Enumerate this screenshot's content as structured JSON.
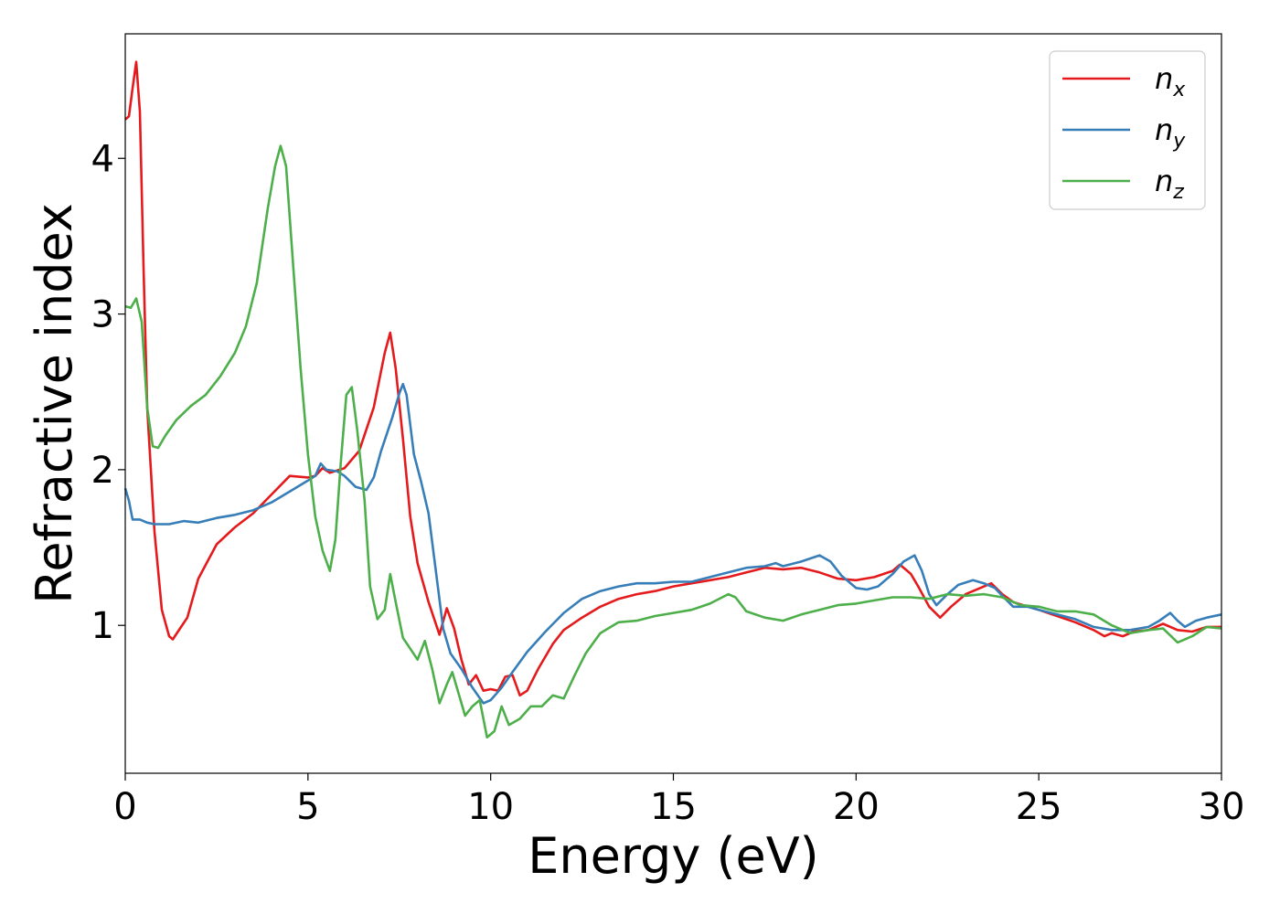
{
  "chart_data": {
    "type": "line",
    "xlabel": "Energy (eV)",
    "ylabel": "Refractive index",
    "xlim": [
      0,
      30
    ],
    "ylim": [
      0.05,
      4.8
    ],
    "xticks": [
      0,
      5,
      10,
      15,
      20,
      25,
      30
    ],
    "xtick_labels": [
      "0",
      "5",
      "10",
      "15",
      "20",
      "25",
      "30"
    ],
    "yticks": [
      1,
      2,
      3,
      4
    ],
    "ytick_labels": [
      "1",
      "2",
      "3",
      "4"
    ],
    "grid": false,
    "legend_position": "top-right",
    "series": [
      {
        "name": "n",
        "subscript": "x",
        "color": "#e41a1c",
        "points": [
          [
            0,
            4.25
          ],
          [
            0.1,
            4.27
          ],
          [
            0.2,
            4.45
          ],
          [
            0.3,
            4.62
          ],
          [
            0.4,
            4.3
          ],
          [
            0.5,
            3.3
          ],
          [
            0.6,
            2.4
          ],
          [
            0.8,
            1.6
          ],
          [
            1.0,
            1.1
          ],
          [
            1.2,
            0.93
          ],
          [
            1.3,
            0.91
          ],
          [
            1.5,
            0.98
          ],
          [
            1.7,
            1.05
          ],
          [
            2.0,
            1.3
          ],
          [
            2.5,
            1.52
          ],
          [
            3.0,
            1.63
          ],
          [
            3.5,
            1.72
          ],
          [
            4.0,
            1.84
          ],
          [
            4.5,
            1.96
          ],
          [
            5.0,
            1.95
          ],
          [
            5.2,
            1.96
          ],
          [
            5.4,
            2.01
          ],
          [
            5.6,
            1.98
          ],
          [
            6.0,
            2.01
          ],
          [
            6.4,
            2.12
          ],
          [
            6.8,
            2.4
          ],
          [
            7.1,
            2.75
          ],
          [
            7.25,
            2.88
          ],
          [
            7.4,
            2.65
          ],
          [
            7.6,
            2.2
          ],
          [
            7.8,
            1.7
          ],
          [
            8.0,
            1.4
          ],
          [
            8.3,
            1.15
          ],
          [
            8.6,
            0.94
          ],
          [
            8.8,
            1.11
          ],
          [
            9.0,
            0.98
          ],
          [
            9.2,
            0.78
          ],
          [
            9.4,
            0.62
          ],
          [
            9.6,
            0.68
          ],
          [
            9.8,
            0.58
          ],
          [
            10.0,
            0.59
          ],
          [
            10.2,
            0.58
          ],
          [
            10.4,
            0.67
          ],
          [
            10.6,
            0.68
          ],
          [
            10.8,
            0.55
          ],
          [
            11.0,
            0.58
          ],
          [
            11.3,
            0.72
          ],
          [
            11.7,
            0.88
          ],
          [
            12.0,
            0.97
          ],
          [
            12.5,
            1.05
          ],
          [
            13.0,
            1.12
          ],
          [
            13.5,
            1.17
          ],
          [
            14.0,
            1.2
          ],
          [
            14.5,
            1.22
          ],
          [
            15.0,
            1.25
          ],
          [
            15.5,
            1.27
          ],
          [
            16.0,
            1.29
          ],
          [
            16.5,
            1.31
          ],
          [
            17.0,
            1.34
          ],
          [
            17.5,
            1.37
          ],
          [
            18.0,
            1.36
          ],
          [
            18.5,
            1.37
          ],
          [
            19.0,
            1.34
          ],
          [
            19.5,
            1.3
          ],
          [
            20.0,
            1.29
          ],
          [
            20.5,
            1.31
          ],
          [
            21.0,
            1.35
          ],
          [
            21.2,
            1.39
          ],
          [
            21.5,
            1.33
          ],
          [
            21.7,
            1.25
          ],
          [
            22.0,
            1.12
          ],
          [
            22.3,
            1.05
          ],
          [
            22.6,
            1.12
          ],
          [
            23.0,
            1.2
          ],
          [
            23.4,
            1.24
          ],
          [
            23.7,
            1.27
          ],
          [
            24.0,
            1.2
          ],
          [
            24.3,
            1.15
          ],
          [
            24.7,
            1.12
          ],
          [
            25.0,
            1.1
          ],
          [
            25.5,
            1.06
          ],
          [
            26.0,
            1.02
          ],
          [
            26.5,
            0.97
          ],
          [
            26.8,
            0.93
          ],
          [
            27.0,
            0.95
          ],
          [
            27.3,
            0.93
          ],
          [
            27.6,
            0.96
          ],
          [
            28.0,
            0.97
          ],
          [
            28.4,
            1.01
          ],
          [
            28.8,
            0.97
          ],
          [
            29.2,
            0.96
          ],
          [
            29.6,
            0.99
          ],
          [
            30.0,
            0.99
          ]
        ]
      },
      {
        "name": "n",
        "subscript": "y",
        "color": "#377eb8",
        "points": [
          [
            0,
            1.88
          ],
          [
            0.1,
            1.8
          ],
          [
            0.2,
            1.68
          ],
          [
            0.4,
            1.68
          ],
          [
            0.6,
            1.66
          ],
          [
            0.8,
            1.65
          ],
          [
            1.2,
            1.65
          ],
          [
            1.6,
            1.67
          ],
          [
            2.0,
            1.66
          ],
          [
            2.5,
            1.69
          ],
          [
            3.0,
            1.71
          ],
          [
            3.5,
            1.74
          ],
          [
            4.0,
            1.79
          ],
          [
            4.5,
            1.86
          ],
          [
            5.0,
            1.93
          ],
          [
            5.2,
            1.96
          ],
          [
            5.35,
            2.04
          ],
          [
            5.5,
            2.0
          ],
          [
            5.8,
            1.99
          ],
          [
            6.0,
            1.96
          ],
          [
            6.3,
            1.89
          ],
          [
            6.6,
            1.87
          ],
          [
            6.8,
            1.95
          ],
          [
            7.0,
            2.12
          ],
          [
            7.3,
            2.33
          ],
          [
            7.5,
            2.49
          ],
          [
            7.6,
            2.55
          ],
          [
            7.7,
            2.48
          ],
          [
            7.9,
            2.1
          ],
          [
            8.1,
            1.92
          ],
          [
            8.3,
            1.72
          ],
          [
            8.5,
            1.35
          ],
          [
            8.7,
            0.98
          ],
          [
            8.9,
            0.82
          ],
          [
            9.2,
            0.72
          ],
          [
            9.5,
            0.6
          ],
          [
            9.8,
            0.5
          ],
          [
            10.0,
            0.52
          ],
          [
            10.3,
            0.6
          ],
          [
            10.6,
            0.7
          ],
          [
            11.0,
            0.83
          ],
          [
            11.5,
            0.96
          ],
          [
            12.0,
            1.08
          ],
          [
            12.5,
            1.17
          ],
          [
            13.0,
            1.22
          ],
          [
            13.5,
            1.25
          ],
          [
            14.0,
            1.27
          ],
          [
            14.5,
            1.27
          ],
          [
            15.0,
            1.28
          ],
          [
            15.5,
            1.28
          ],
          [
            16.0,
            1.31
          ],
          [
            16.5,
            1.34
          ],
          [
            17.0,
            1.37
          ],
          [
            17.5,
            1.38
          ],
          [
            17.8,
            1.4
          ],
          [
            18.0,
            1.38
          ],
          [
            18.5,
            1.41
          ],
          [
            19.0,
            1.45
          ],
          [
            19.3,
            1.41
          ],
          [
            19.6,
            1.32
          ],
          [
            20.0,
            1.24
          ],
          [
            20.3,
            1.23
          ],
          [
            20.6,
            1.25
          ],
          [
            21.0,
            1.33
          ],
          [
            21.3,
            1.41
          ],
          [
            21.6,
            1.45
          ],
          [
            21.8,
            1.35
          ],
          [
            22.0,
            1.2
          ],
          [
            22.2,
            1.13
          ],
          [
            22.5,
            1.2
          ],
          [
            22.8,
            1.26
          ],
          [
            23.2,
            1.29
          ],
          [
            23.5,
            1.27
          ],
          [
            23.8,
            1.24
          ],
          [
            24.0,
            1.19
          ],
          [
            24.3,
            1.12
          ],
          [
            24.7,
            1.12
          ],
          [
            25.0,
            1.1
          ],
          [
            25.5,
            1.07
          ],
          [
            26.0,
            1.04
          ],
          [
            26.5,
            0.99
          ],
          [
            27.0,
            0.97
          ],
          [
            27.5,
            0.97
          ],
          [
            28.0,
            0.99
          ],
          [
            28.3,
            1.03
          ],
          [
            28.6,
            1.08
          ],
          [
            28.8,
            1.03
          ],
          [
            29.0,
            0.99
          ],
          [
            29.3,
            1.03
          ],
          [
            29.6,
            1.05
          ],
          [
            30.0,
            1.07
          ]
        ]
      },
      {
        "name": "n",
        "subscript": "z",
        "color": "#4daf4a",
        "points": [
          [
            0,
            3.05
          ],
          [
            0.15,
            3.04
          ],
          [
            0.3,
            3.1
          ],
          [
            0.45,
            2.95
          ],
          [
            0.6,
            2.4
          ],
          [
            0.75,
            2.15
          ],
          [
            0.9,
            2.14
          ],
          [
            1.1,
            2.22
          ],
          [
            1.4,
            2.32
          ],
          [
            1.8,
            2.41
          ],
          [
            2.2,
            2.48
          ],
          [
            2.6,
            2.6
          ],
          [
            3.0,
            2.75
          ],
          [
            3.3,
            2.92
          ],
          [
            3.6,
            3.2
          ],
          [
            3.9,
            3.68
          ],
          [
            4.1,
            3.95
          ],
          [
            4.25,
            4.08
          ],
          [
            4.4,
            3.95
          ],
          [
            4.6,
            3.3
          ],
          [
            4.8,
            2.65
          ],
          [
            5.0,
            2.1
          ],
          [
            5.2,
            1.7
          ],
          [
            5.4,
            1.48
          ],
          [
            5.6,
            1.35
          ],
          [
            5.75,
            1.55
          ],
          [
            5.9,
            2.05
          ],
          [
            6.05,
            2.48
          ],
          [
            6.2,
            2.53
          ],
          [
            6.35,
            2.25
          ],
          [
            6.55,
            1.8
          ],
          [
            6.7,
            1.25
          ],
          [
            6.9,
            1.04
          ],
          [
            7.1,
            1.1
          ],
          [
            7.25,
            1.33
          ],
          [
            7.4,
            1.15
          ],
          [
            7.6,
            0.92
          ],
          [
            7.8,
            0.85
          ],
          [
            8.0,
            0.78
          ],
          [
            8.2,
            0.9
          ],
          [
            8.4,
            0.72
          ],
          [
            8.6,
            0.5
          ],
          [
            8.8,
            0.62
          ],
          [
            8.95,
            0.7
          ],
          [
            9.1,
            0.58
          ],
          [
            9.3,
            0.42
          ],
          [
            9.5,
            0.48
          ],
          [
            9.7,
            0.52
          ],
          [
            9.9,
            0.28
          ],
          [
            10.1,
            0.32
          ],
          [
            10.3,
            0.48
          ],
          [
            10.5,
            0.36
          ],
          [
            10.8,
            0.4
          ],
          [
            11.1,
            0.48
          ],
          [
            11.4,
            0.48
          ],
          [
            11.7,
            0.55
          ],
          [
            12.0,
            0.53
          ],
          [
            12.3,
            0.68
          ],
          [
            12.6,
            0.82
          ],
          [
            13.0,
            0.95
          ],
          [
            13.5,
            1.02
          ],
          [
            14.0,
            1.03
          ],
          [
            14.5,
            1.06
          ],
          [
            15.0,
            1.08
          ],
          [
            15.5,
            1.1
          ],
          [
            16.0,
            1.14
          ],
          [
            16.5,
            1.2
          ],
          [
            16.7,
            1.18
          ],
          [
            17.0,
            1.09
          ],
          [
            17.5,
            1.05
          ],
          [
            18.0,
            1.03
          ],
          [
            18.5,
            1.07
          ],
          [
            19.0,
            1.1
          ],
          [
            19.5,
            1.13
          ],
          [
            20.0,
            1.14
          ],
          [
            20.5,
            1.16
          ],
          [
            21.0,
            1.18
          ],
          [
            21.5,
            1.18
          ],
          [
            22.0,
            1.17
          ],
          [
            22.5,
            1.2
          ],
          [
            23.0,
            1.19
          ],
          [
            23.5,
            1.2
          ],
          [
            24.0,
            1.18
          ],
          [
            24.5,
            1.13
          ],
          [
            25.0,
            1.12
          ],
          [
            25.5,
            1.09
          ],
          [
            26.0,
            1.09
          ],
          [
            26.5,
            1.07
          ],
          [
            27.0,
            1.0
          ],
          [
            27.5,
            0.95
          ],
          [
            28.0,
            0.97
          ],
          [
            28.4,
            0.98
          ],
          [
            28.8,
            0.89
          ],
          [
            29.2,
            0.93
          ],
          [
            29.6,
            0.99
          ],
          [
            30.0,
            0.98
          ]
        ]
      }
    ]
  }
}
